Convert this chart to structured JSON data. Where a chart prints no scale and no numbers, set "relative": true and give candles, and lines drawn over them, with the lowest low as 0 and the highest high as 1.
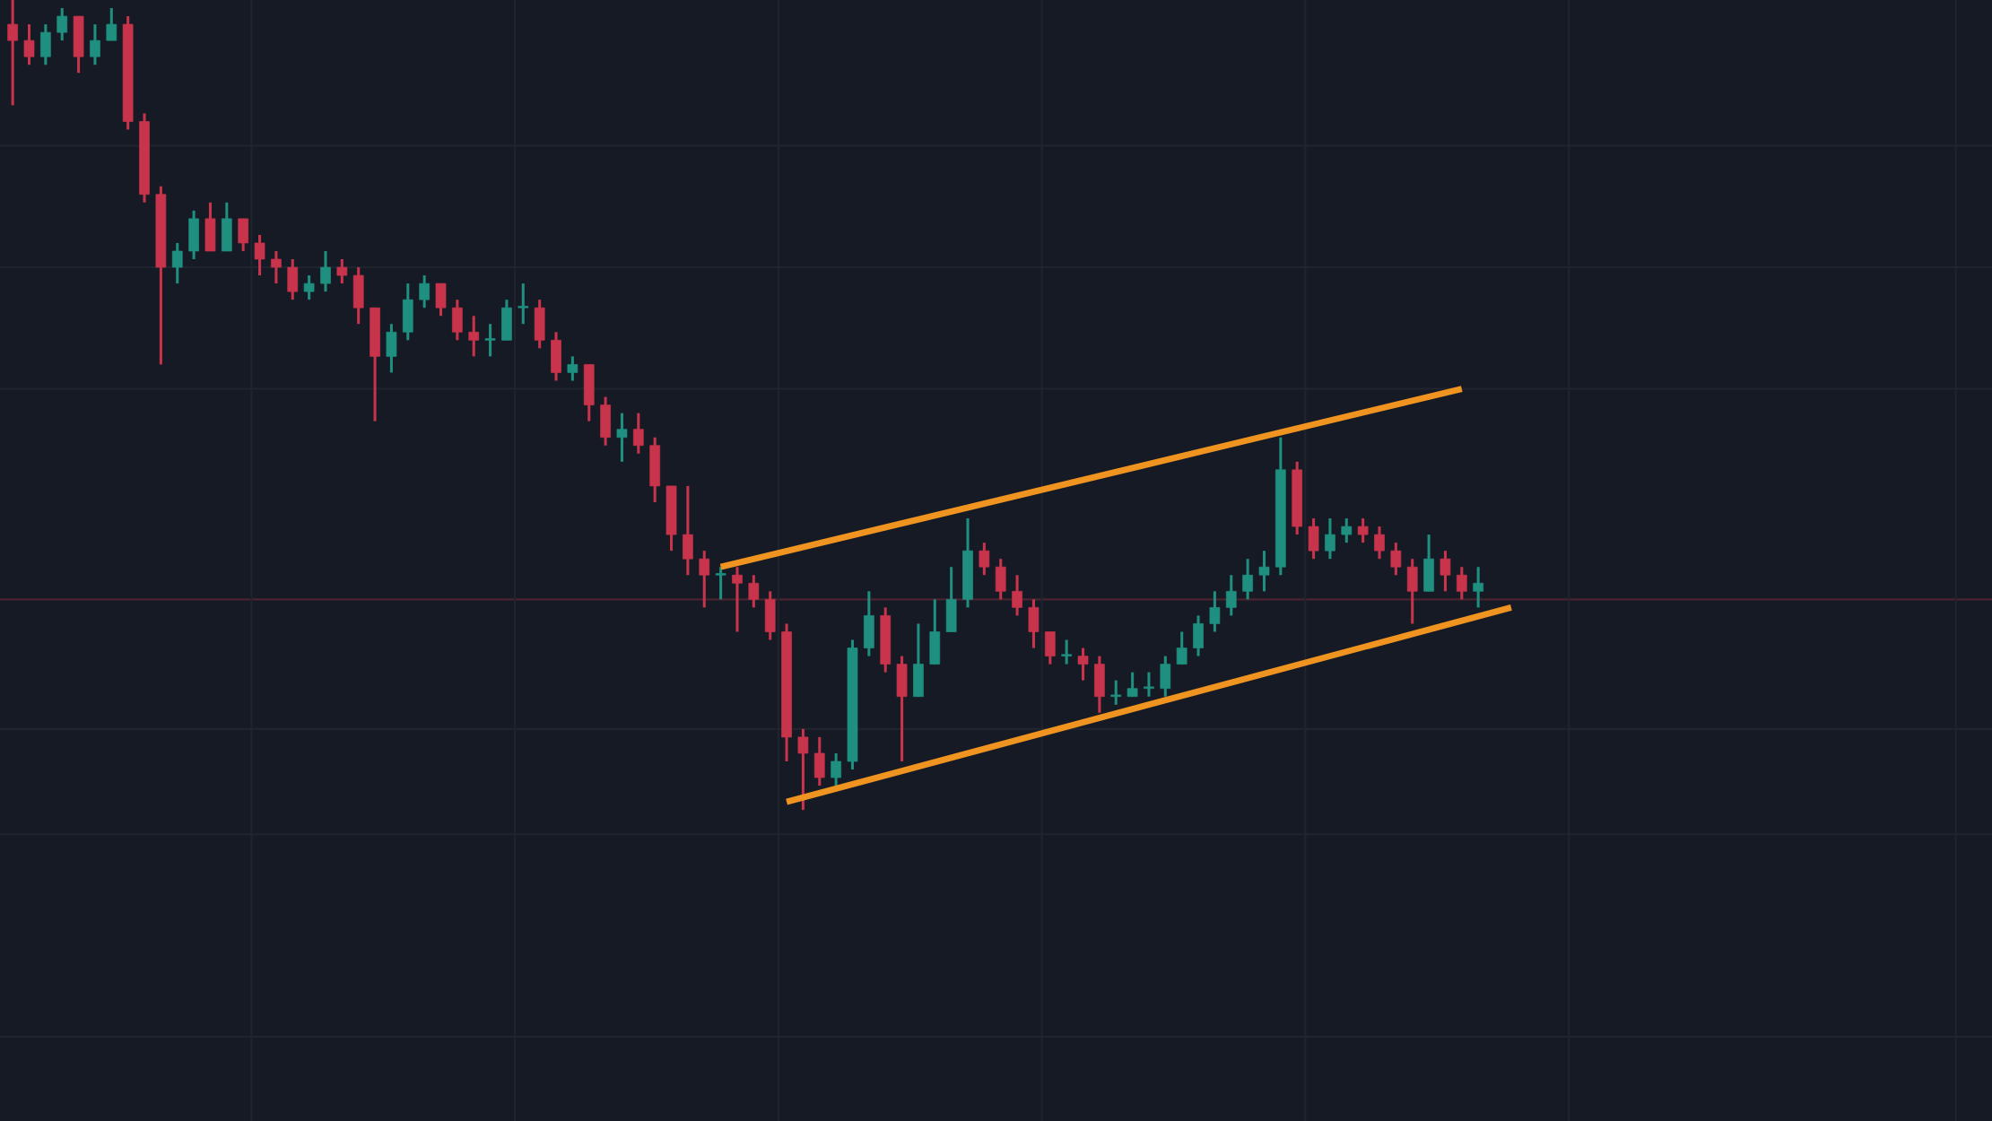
{
  "chart_data": {
    "type": "candlestick",
    "relative": true,
    "grid": true,
    "categories": [
      null,
      null,
      null,
      null,
      null,
      null,
      null,
      null,
      null,
      null,
      null,
      null,
      null,
      null,
      null,
      null,
      null,
      null,
      null,
      null,
      null,
      null,
      null,
      null,
      null,
      null,
      null,
      null,
      null,
      null,
      null,
      null,
      null,
      null,
      null,
      null,
      null,
      null,
      null,
      null,
      null,
      null,
      null,
      null,
      null,
      null,
      null,
      null,
      null,
      null,
      null,
      null,
      null,
      null,
      null,
      null,
      null,
      null,
      null,
      null,
      null,
      null,
      null,
      null,
      null,
      null,
      null,
      null,
      null,
      null,
      null,
      null,
      null,
      null,
      null,
      null,
      null,
      null,
      null,
      null,
      null,
      null,
      null,
      null,
      null,
      null,
      null,
      null,
      null,
      null,
      null,
      null,
      null,
      null,
      null,
      null,
      null,
      null,
      null,
      null,
      null,
      null,
      null,
      null,
      null,
      null,
      null,
      null,
      null,
      null,
      null,
      null,
      null,
      null,
      null,
      null,
      null,
      null,
      null,
      null,
      null
    ],
    "ohlc": [
      [
        0.97,
        1.0,
        0.87,
        0.95
      ],
      [
        0.95,
        0.97,
        0.92,
        0.93
      ],
      [
        0.93,
        0.97,
        0.92,
        0.96
      ],
      [
        0.96,
        0.99,
        0.95,
        0.98
      ],
      [
        0.98,
        0.98,
        0.91,
        0.93
      ],
      [
        0.93,
        0.97,
        0.92,
        0.95
      ],
      [
        0.95,
        0.99,
        0.95,
        0.97
      ],
      [
        0.97,
        0.98,
        0.84,
        0.85
      ],
      [
        0.85,
        0.86,
        0.75,
        0.76
      ],
      [
        0.76,
        0.77,
        0.55,
        0.67
      ],
      [
        0.67,
        0.7,
        0.65,
        0.69
      ],
      [
        0.69,
        0.74,
        0.68,
        0.73
      ],
      [
        0.73,
        0.75,
        0.69,
        0.69
      ],
      [
        0.69,
        0.75,
        0.69,
        0.73
      ],
      [
        0.73,
        0.73,
        0.69,
        0.7
      ],
      [
        0.7,
        0.71,
        0.66,
        0.68
      ],
      [
        0.68,
        0.69,
        0.65,
        0.67
      ],
      [
        0.67,
        0.68,
        0.63,
        0.64
      ],
      [
        0.64,
        0.66,
        0.63,
        0.65
      ],
      [
        0.65,
        0.69,
        0.64,
        0.67
      ],
      [
        0.67,
        0.68,
        0.65,
        0.66
      ],
      [
        0.66,
        0.67,
        0.6,
        0.62
      ],
      [
        0.62,
        0.62,
        0.48,
        0.56
      ],
      [
        0.56,
        0.6,
        0.54,
        0.59
      ],
      [
        0.59,
        0.65,
        0.58,
        0.63
      ],
      [
        0.63,
        0.66,
        0.62,
        0.65
      ],
      [
        0.65,
        0.65,
        0.61,
        0.62
      ],
      [
        0.62,
        0.63,
        0.58,
        0.59
      ],
      [
        0.59,
        0.61,
        0.56,
        0.58
      ],
      [
        0.58,
        0.6,
        0.56,
        0.58
      ],
      [
        0.58,
        0.63,
        0.58,
        0.62
      ],
      [
        0.62,
        0.65,
        0.6,
        0.62
      ],
      [
        0.62,
        0.63,
        0.57,
        0.58
      ],
      [
        0.58,
        0.59,
        0.53,
        0.54
      ],
      [
        0.54,
        0.56,
        0.53,
        0.55
      ],
      [
        0.55,
        0.55,
        0.48,
        0.5
      ],
      [
        0.5,
        0.51,
        0.45,
        0.46
      ],
      [
        0.46,
        0.49,
        0.43,
        0.47
      ],
      [
        0.47,
        0.49,
        0.44,
        0.45
      ],
      [
        0.45,
        0.46,
        0.38,
        0.4
      ],
      [
        0.4,
        0.4,
        0.32,
        0.34
      ],
      [
        0.34,
        0.4,
        0.29,
        0.31
      ],
      [
        0.31,
        0.32,
        0.25,
        0.29
      ],
      [
        0.29,
        0.3,
        0.26,
        0.29
      ],
      [
        0.29,
        0.3,
        0.22,
        0.28
      ],
      [
        0.28,
        0.29,
        0.25,
        0.26
      ],
      [
        0.26,
        0.27,
        0.21,
        0.22
      ],
      [
        0.22,
        0.23,
        0.06,
        0.09
      ],
      [
        0.09,
        0.1,
        0.0,
        0.07
      ],
      [
        0.07,
        0.09,
        0.03,
        0.04
      ],
      [
        0.04,
        0.07,
        0.03,
        0.06
      ],
      [
        0.06,
        0.21,
        0.05,
        0.2
      ],
      [
        0.2,
        0.27,
        0.19,
        0.24
      ],
      [
        0.24,
        0.25,
        0.17,
        0.18
      ],
      [
        0.18,
        0.19,
        0.06,
        0.14
      ],
      [
        0.14,
        0.23,
        0.14,
        0.18
      ],
      [
        0.18,
        0.26,
        0.18,
        0.22
      ],
      [
        0.22,
        0.3,
        0.22,
        0.26
      ],
      [
        0.26,
        0.36,
        0.25,
        0.32
      ],
      [
        0.32,
        0.33,
        0.29,
        0.3
      ],
      [
        0.3,
        0.31,
        0.26,
        0.27
      ],
      [
        0.27,
        0.29,
        0.24,
        0.25
      ],
      [
        0.25,
        0.26,
        0.2,
        0.22
      ],
      [
        0.22,
        0.22,
        0.18,
        0.19
      ],
      [
        0.19,
        0.21,
        0.18,
        0.19
      ],
      [
        0.19,
        0.2,
        0.16,
        0.18
      ],
      [
        0.18,
        0.19,
        0.12,
        0.14
      ],
      [
        0.14,
        0.16,
        0.13,
        0.14
      ],
      [
        0.14,
        0.17,
        0.14,
        0.15
      ],
      [
        0.15,
        0.17,
        0.14,
        0.15
      ],
      [
        0.15,
        0.19,
        0.14,
        0.18
      ],
      [
        0.18,
        0.22,
        0.18,
        0.2
      ],
      [
        0.2,
        0.24,
        0.19,
        0.23
      ],
      [
        0.23,
        0.27,
        0.22,
        0.25
      ],
      [
        0.25,
        0.29,
        0.24,
        0.27
      ],
      [
        0.27,
        0.31,
        0.26,
        0.29
      ],
      [
        0.29,
        0.32,
        0.27,
        0.3
      ],
      [
        0.3,
        0.46,
        0.29,
        0.42
      ],
      [
        0.42,
        0.43,
        0.34,
        0.35
      ],
      [
        0.35,
        0.36,
        0.31,
        0.32
      ],
      [
        0.32,
        0.36,
        0.31,
        0.34
      ],
      [
        0.34,
        0.36,
        0.33,
        0.35
      ],
      [
        0.35,
        0.36,
        0.33,
        0.34
      ],
      [
        0.34,
        0.35,
        0.31,
        0.32
      ],
      [
        0.32,
        0.33,
        0.29,
        0.3
      ],
      [
        0.3,
        0.31,
        0.23,
        0.27
      ],
      [
        0.27,
        0.34,
        0.27,
        0.31
      ],
      [
        0.31,
        0.32,
        0.27,
        0.29
      ],
      [
        0.29,
        0.3,
        0.26,
        0.27
      ],
      [
        0.27,
        0.3,
        0.25,
        0.28
      ],
      null,
      null,
      null,
      null,
      null,
      null,
      null,
      null,
      null,
      null,
      null,
      null,
      null,
      null,
      null,
      null,
      null,
      null,
      null,
      null,
      null,
      null,
      null,
      null,
      null,
      null,
      null,
      null,
      null,
      null,
      null
    ],
    "series": [
      {
        "type": "line",
        "color": "#ef9420",
        "values": [
          null,
          null,
          null,
          null,
          null,
          null,
          null,
          null,
          null,
          null,
          null,
          null,
          null,
          null,
          null,
          null,
          null,
          null,
          null,
          null,
          null,
          null,
          null,
          null,
          null,
          null,
          null,
          null,
          null,
          null,
          null,
          null,
          null,
          null,
          null,
          null,
          null,
          null,
          null,
          null,
          null,
          null,
          null,
          0.3,
          null,
          null,
          null,
          null,
          null,
          null,
          null,
          null,
          null,
          null,
          null,
          null,
          null,
          null,
          null,
          null,
          null,
          null,
          null,
          null,
          null,
          null,
          null,
          null,
          null,
          null,
          null,
          null,
          null,
          null,
          null,
          null,
          null,
          null,
          null,
          null,
          null,
          null,
          null,
          null,
          null,
          null,
          null,
          null,
          0.52,
          null,
          null,
          null,
          null,
          null,
          null,
          null,
          null,
          null,
          null,
          null,
          null,
          null,
          null,
          null,
          null,
          null,
          null,
          null,
          null,
          null,
          null,
          null,
          null,
          null,
          null,
          null,
          null,
          null,
          null,
          null,
          null
        ]
      },
      {
        "type": "line",
        "color": "#ef9420",
        "values": [
          null,
          null,
          null,
          null,
          null,
          null,
          null,
          null,
          null,
          null,
          null,
          null,
          null,
          null,
          null,
          null,
          null,
          null,
          null,
          null,
          null,
          null,
          null,
          null,
          null,
          null,
          null,
          null,
          null,
          null,
          null,
          null,
          null,
          null,
          null,
          null,
          null,
          null,
          null,
          null,
          null,
          null,
          null,
          null,
          null,
          null,
          null,
          0.01,
          null,
          null,
          null,
          null,
          null,
          null,
          null,
          null,
          null,
          null,
          null,
          null,
          null,
          null,
          null,
          null,
          null,
          null,
          null,
          null,
          null,
          null,
          null,
          null,
          null,
          null,
          null,
          null,
          null,
          null,
          null,
          null,
          null,
          null,
          null,
          null,
          null,
          null,
          null,
          null,
          null,
          null,
          null,
          0.25,
          null,
          null,
          null,
          null,
          null,
          null,
          null,
          null,
          null,
          null,
          null,
          null,
          null,
          null,
          null,
          null,
          null,
          null,
          null,
          null,
          null,
          null,
          null,
          null,
          null,
          null,
          null,
          null,
          null
        ]
      }
    ],
    "ref_lines": [
      {
        "axis": "y",
        "value": 0.26,
        "color": "#4a2431"
      }
    ]
  }
}
